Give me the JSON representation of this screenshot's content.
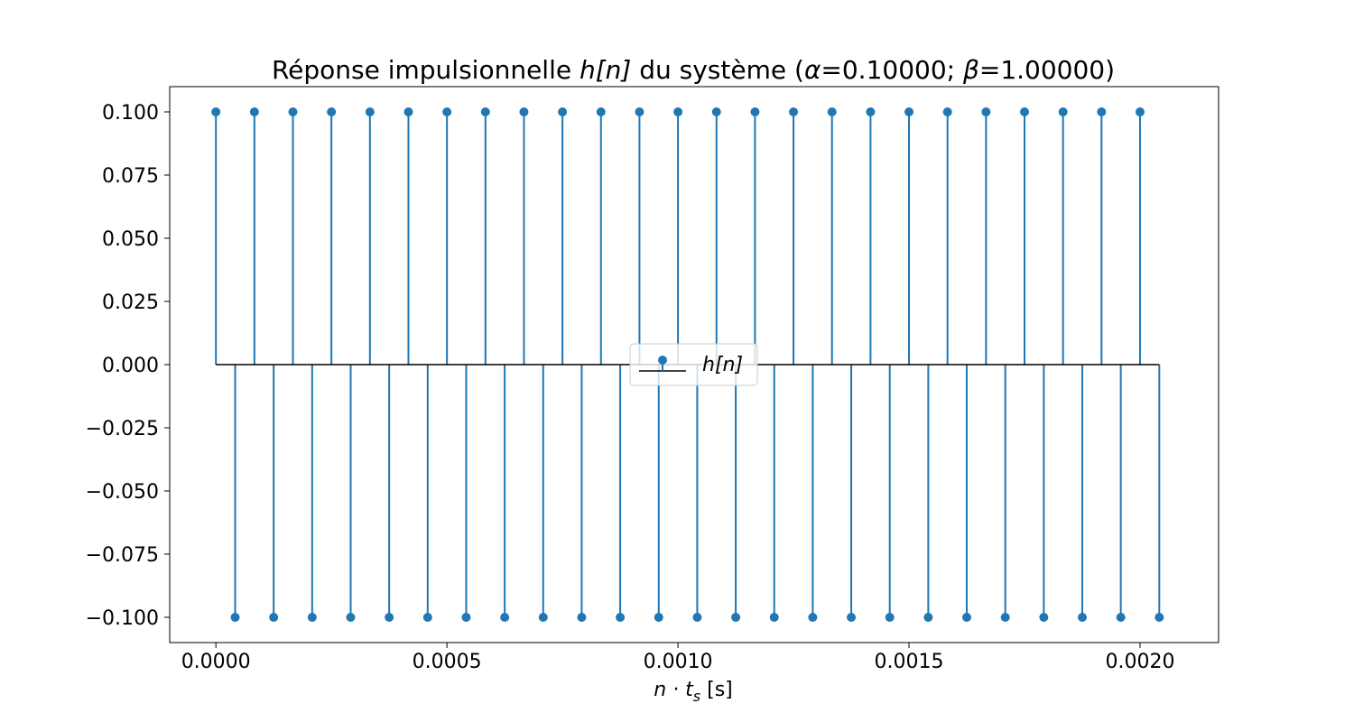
{
  "chart_data": {
    "type": "stem",
    "title_prefix": "Réponse impulsionnelle ",
    "title_math": "h[n]",
    "title_suffix_1": " du système (",
    "alpha_symbol": "α",
    "alpha_value": "=0.10000; ",
    "beta_symbol": "β",
    "beta_value": "=1.00000)",
    "xlabel_math": "n · t",
    "xlabel_sub": "s",
    "xlabel_unit": " [s]",
    "legend_label": "h[n]",
    "sample_step": 4.166667e-05,
    "sample_count": 50,
    "amplitude": 0.1,
    "pattern": "alternating sign starting positive",
    "xlim": [
      -0.0001,
      0.00217
    ],
    "ylim": [
      -0.11,
      0.11
    ],
    "xticks": [
      {
        "value": 0.0,
        "label": "0.0000"
      },
      {
        "value": 0.0005,
        "label": "0.0005"
      },
      {
        "value": 0.001,
        "label": "0.0010"
      },
      {
        "value": 0.0015,
        "label": "0.0015"
      },
      {
        "value": 0.002,
        "label": "0.0020"
      }
    ],
    "yticks": [
      {
        "value": 0.1,
        "label": "0.100"
      },
      {
        "value": 0.075,
        "label": "0.075"
      },
      {
        "value": 0.05,
        "label": "0.050"
      },
      {
        "value": 0.025,
        "label": "0.025"
      },
      {
        "value": 0.0,
        "label": "0.000"
      },
      {
        "value": -0.025,
        "label": "−0.025"
      },
      {
        "value": -0.05,
        "label": "−0.050"
      },
      {
        "value": -0.075,
        "label": "−0.075"
      },
      {
        "value": -0.1,
        "label": "−0.100"
      }
    ],
    "grid": false,
    "legend_position": "center",
    "colors": {
      "stem": "#1f77b4",
      "baseline": "#000000"
    }
  }
}
